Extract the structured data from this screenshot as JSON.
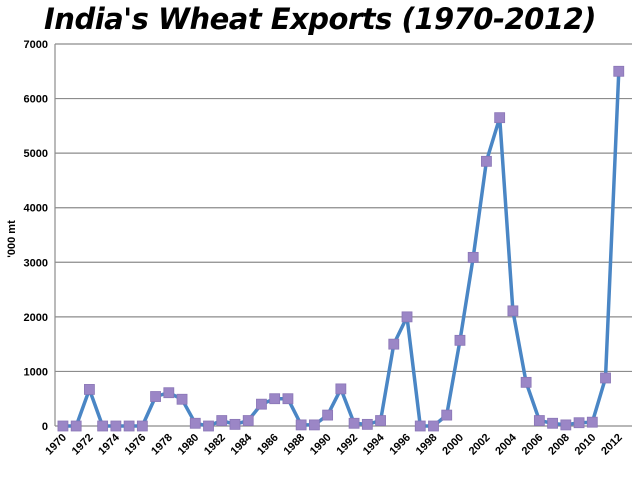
{
  "chart_data": {
    "type": "line",
    "title": "India's Wheat Exports (1970-2012)",
    "xlabel": "",
    "ylabel": "'000 mt",
    "ylim": [
      0,
      7000
    ],
    "yticks": [
      0,
      1000,
      2000,
      3000,
      4000,
      5000,
      6000,
      7000
    ],
    "xtick_labels": [
      "1970",
      "1972",
      "1974",
      "1976",
      "1978",
      "1980",
      "1982",
      "1984",
      "1986",
      "1988",
      "1990",
      "1992",
      "1994",
      "1996",
      "1998",
      "2000",
      "2002",
      "2004",
      "2006",
      "2008",
      "2010",
      "2012"
    ],
    "grid": "horizontal",
    "legend": "none",
    "line_color": "#4a86c5",
    "marker_color": "#9b86c6",
    "series": [
      {
        "x": [
          1970,
          1971,
          1972,
          1973,
          1974,
          1975,
          1976,
          1977,
          1978,
          1979,
          1980,
          1981,
          1982,
          1983,
          1984,
          1985,
          1986,
          1987,
          1988,
          1989,
          1990,
          1991,
          1992,
          1993,
          1994,
          1995,
          1996,
          1997,
          1998,
          1999,
          2000,
          2001,
          2002,
          2003,
          2004,
          2005,
          2006,
          2007,
          2008,
          2009,
          2010,
          2011,
          2012
        ],
        "values": [
          0,
          0,
          670,
          0,
          0,
          0,
          0,
          540,
          610,
          490,
          50,
          0,
          100,
          30,
          100,
          400,
          500,
          500,
          20,
          20,
          200,
          680,
          50,
          30,
          100,
          1500,
          2000,
          0,
          0,
          200,
          1570,
          3090,
          4850,
          5650,
          2110,
          800,
          100,
          50,
          20,
          60,
          70,
          880,
          6500
        ]
      }
    ]
  }
}
